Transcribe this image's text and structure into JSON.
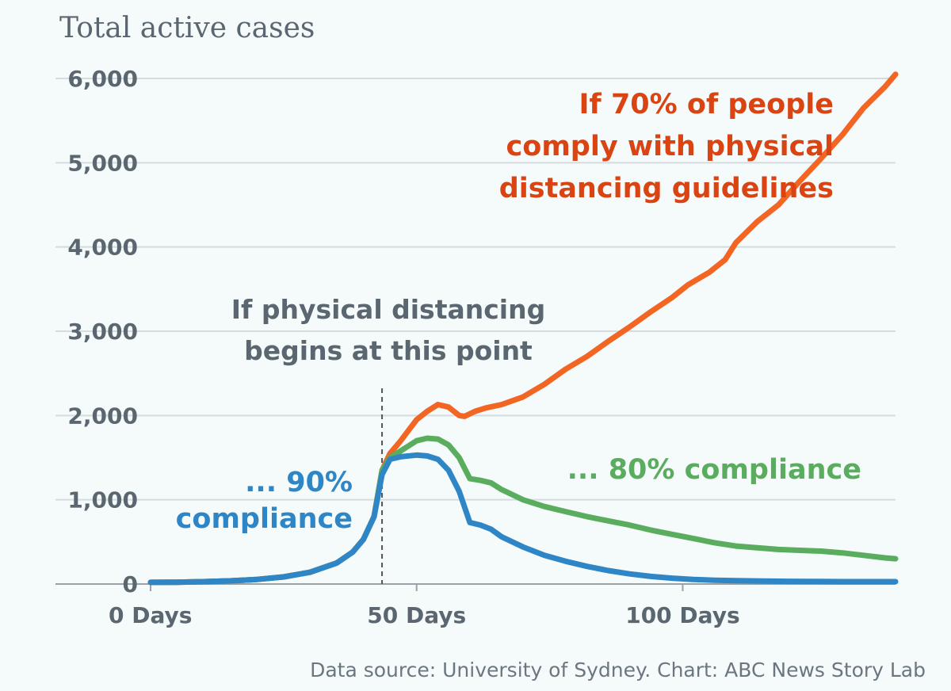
{
  "chart_data": {
    "type": "line",
    "title": "Total active cases",
    "source": "Data source: University of Sydney. Chart: ABC News Story Lab",
    "xlim": [
      0,
      140
    ],
    "ylim": [
      0,
      6000
    ],
    "x_ticks": [
      {
        "value": 0,
        "label": "0 Days"
      },
      {
        "value": 50,
        "label": "50 Days"
      },
      {
        "value": 100,
        "label": "100 Days"
      }
    ],
    "y_ticks": [
      {
        "value": 0,
        "label": "0"
      },
      {
        "value": 1000,
        "label": "1,000"
      },
      {
        "value": 2000,
        "label": "2,000"
      },
      {
        "value": 3000,
        "label": "3,000"
      },
      {
        "value": 4000,
        "label": "4,000"
      },
      {
        "value": 5000,
        "label": "5,000"
      },
      {
        "value": 6000,
        "label": "6,000"
      }
    ],
    "grid": true,
    "marker": {
      "x": 43.5
    },
    "series": [
      {
        "key": "70",
        "color": "#f26522",
        "points": [
          [
            0,
            20
          ],
          [
            5,
            22
          ],
          [
            10,
            28
          ],
          [
            15,
            38
          ],
          [
            20,
            55
          ],
          [
            25,
            85
          ],
          [
            30,
            140
          ],
          [
            35,
            250
          ],
          [
            38,
            380
          ],
          [
            40,
            530
          ],
          [
            42,
            800
          ],
          [
            43.5,
            1350
          ],
          [
            45,
            1550
          ],
          [
            47,
            1700
          ],
          [
            50,
            1950
          ],
          [
            52,
            2050
          ],
          [
            54,
            2130
          ],
          [
            56,
            2100
          ],
          [
            58,
            2000
          ],
          [
            59,
            1990
          ],
          [
            61,
            2050
          ],
          [
            63,
            2090
          ],
          [
            66,
            2130
          ],
          [
            70,
            2220
          ],
          [
            74,
            2370
          ],
          [
            78,
            2550
          ],
          [
            82,
            2700
          ],
          [
            86,
            2880
          ],
          [
            90,
            3050
          ],
          [
            94,
            3230
          ],
          [
            98,
            3400
          ],
          [
            101,
            3550
          ],
          [
            105,
            3700
          ],
          [
            108,
            3850
          ],
          [
            110,
            4050
          ],
          [
            114,
            4300
          ],
          [
            118,
            4500
          ],
          [
            122,
            4780
          ],
          [
            126,
            5050
          ],
          [
            130,
            5330
          ],
          [
            134,
            5650
          ],
          [
            138,
            5900
          ],
          [
            140,
            6050
          ]
        ]
      },
      {
        "key": "80",
        "color": "#5aad5e",
        "points": [
          [
            0,
            20
          ],
          [
            5,
            22
          ],
          [
            10,
            28
          ],
          [
            15,
            38
          ],
          [
            20,
            55
          ],
          [
            25,
            85
          ],
          [
            30,
            140
          ],
          [
            35,
            250
          ],
          [
            38,
            380
          ],
          [
            40,
            530
          ],
          [
            42,
            800
          ],
          [
            43.5,
            1350
          ],
          [
            45,
            1500
          ],
          [
            47,
            1580
          ],
          [
            50,
            1700
          ],
          [
            52,
            1730
          ],
          [
            54,
            1720
          ],
          [
            56,
            1650
          ],
          [
            58,
            1500
          ],
          [
            60,
            1250
          ],
          [
            62,
            1230
          ],
          [
            64,
            1200
          ],
          [
            66,
            1120
          ],
          [
            70,
            1000
          ],
          [
            74,
            920
          ],
          [
            78,
            860
          ],
          [
            82,
            800
          ],
          [
            86,
            750
          ],
          [
            90,
            700
          ],
          [
            94,
            640
          ],
          [
            98,
            590
          ],
          [
            102,
            540
          ],
          [
            106,
            490
          ],
          [
            110,
            450
          ],
          [
            114,
            430
          ],
          [
            118,
            410
          ],
          [
            122,
            400
          ],
          [
            126,
            390
          ],
          [
            130,
            370
          ],
          [
            134,
            340
          ],
          [
            138,
            310
          ],
          [
            140,
            300
          ]
        ]
      },
      {
        "key": "90",
        "color": "#2f86c7",
        "points": [
          [
            0,
            20
          ],
          [
            5,
            22
          ],
          [
            10,
            28
          ],
          [
            15,
            38
          ],
          [
            20,
            55
          ],
          [
            25,
            85
          ],
          [
            30,
            140
          ],
          [
            35,
            250
          ],
          [
            38,
            380
          ],
          [
            40,
            530
          ],
          [
            42,
            800
          ],
          [
            43.5,
            1300
          ],
          [
            45,
            1480
          ],
          [
            47,
            1510
          ],
          [
            50,
            1530
          ],
          [
            52,
            1520
          ],
          [
            54,
            1480
          ],
          [
            56,
            1350
          ],
          [
            58,
            1100
          ],
          [
            60,
            730
          ],
          [
            62,
            700
          ],
          [
            64,
            650
          ],
          [
            66,
            560
          ],
          [
            70,
            440
          ],
          [
            74,
            340
          ],
          [
            78,
            270
          ],
          [
            82,
            210
          ],
          [
            86,
            160
          ],
          [
            90,
            120
          ],
          [
            94,
            90
          ],
          [
            98,
            70
          ],
          [
            102,
            55
          ],
          [
            106,
            45
          ],
          [
            110,
            40
          ],
          [
            115,
            35
          ],
          [
            120,
            32
          ],
          [
            125,
            30
          ],
          [
            130,
            28
          ],
          [
            135,
            28
          ],
          [
            140,
            28
          ]
        ]
      }
    ],
    "annotations": {
      "marker_label": [
        "If physical distancing",
        "begins at this point"
      ],
      "seventy": [
        "If 70% of people",
        "comply with physical",
        "distancing guidelines"
      ],
      "eighty": [
        "... 80% compliance"
      ],
      "ninety": [
        "... 90%",
        "compliance"
      ]
    }
  }
}
